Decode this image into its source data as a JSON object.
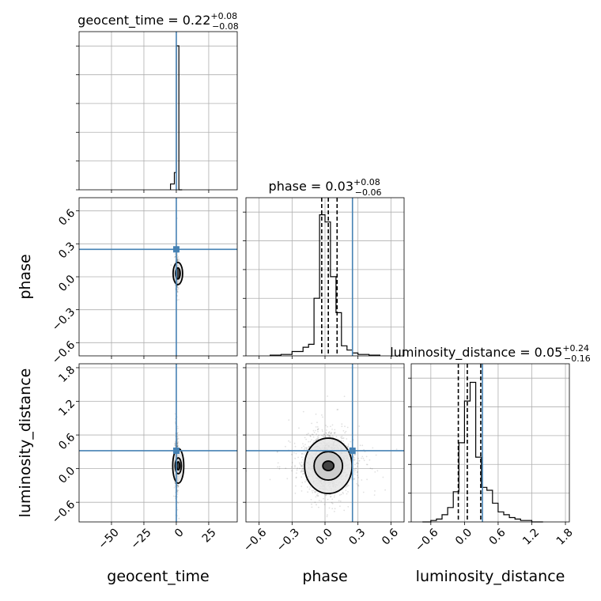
{
  "chart_data": {
    "type": "corner",
    "parameters": [
      "geocent_time",
      "phase",
      "luminosity_distance"
    ],
    "truth": {
      "geocent_time": 0,
      "phase": 0.25,
      "luminosity_distance": 0.32
    },
    "truth_color": "#4682b4",
    "grid": true,
    "ranges": {
      "geocent_time": [
        -75,
        47
      ],
      "phase": [
        -0.72,
        0.72
      ],
      "luminosity_distance": [
        -0.95,
        1.87
      ]
    },
    "ticks": {
      "geocent_time": [
        -50,
        -25,
        0,
        25
      ],
      "phase": [
        -0.6,
        -0.3,
        0.0,
        0.3,
        0.6
      ],
      "luminosity_distance": [
        -0.6,
        0.0,
        0.6,
        1.2,
        1.8
      ]
    },
    "tick_labels": {
      "geocent_time": [
        "−50",
        "−25",
        "0",
        "25"
      ],
      "phase": [
        "−0.6",
        "−0.3",
        "0.0",
        "0.3",
        "0.6"
      ],
      "luminosity_distance": [
        "−0.6",
        "0.0",
        "0.6",
        "1.2",
        "1.8"
      ]
    },
    "titles": [
      {
        "param": "geocent_time",
        "name": "geocent_time",
        "median": "0.22",
        "plus": "+0.08",
        "minus": "−0.08"
      },
      {
        "param": "phase",
        "name": "phase",
        "median": "0.03",
        "plus": "+0.08",
        "minus": "−0.06"
      },
      {
        "param": "luminosity_distance",
        "name": "luminosity_distance",
        "median": "0.05",
        "plus": "+0.24",
        "minus": "−0.16"
      }
    ],
    "quantiles": {
      "phase": [
        -0.03,
        0.03,
        0.11
      ],
      "luminosity_distance": [
        -0.11,
        0.05,
        0.29
      ]
    },
    "histograms": {
      "geocent_time": {
        "edges": [
          -4.5,
          -1.5,
          0,
          2,
          4.5
        ],
        "counts": [
          0.04,
          0.12,
          1.0,
          0.0
        ]
      },
      "phase": {
        "edges": [
          -0.5,
          -0.4,
          -0.3,
          -0.2,
          -0.15,
          -0.1,
          -0.05,
          0.0,
          0.05,
          0.1,
          0.15,
          0.2,
          0.25,
          0.3,
          0.4,
          0.5
        ],
        "counts": [
          0.005,
          0.01,
          0.03,
          0.06,
          0.08,
          0.4,
          0.98,
          0.93,
          0.55,
          0.3,
          0.07,
          0.04,
          0.02,
          0.01,
          0.005
        ]
      },
      "luminosity_distance": {
        "edges": [
          -0.75,
          -0.6,
          -0.5,
          -0.4,
          -0.3,
          -0.2,
          -0.1,
          0.0,
          0.1,
          0.2,
          0.3,
          0.4,
          0.5,
          0.6,
          0.7,
          0.8,
          0.9,
          1.0,
          1.2,
          1.4
        ],
        "counts": [
          0.0,
          0.01,
          0.02,
          0.05,
          0.1,
          0.21,
          0.55,
          0.84,
          0.97,
          0.45,
          0.24,
          0.22,
          0.13,
          0.07,
          0.05,
          0.03,
          0.02,
          0.01,
          0.0
        ]
      }
    },
    "axis_labels": {
      "geocent_time": "geocent_time",
      "phase": "phase",
      "luminosity_distance": "luminosity_distance"
    }
  }
}
